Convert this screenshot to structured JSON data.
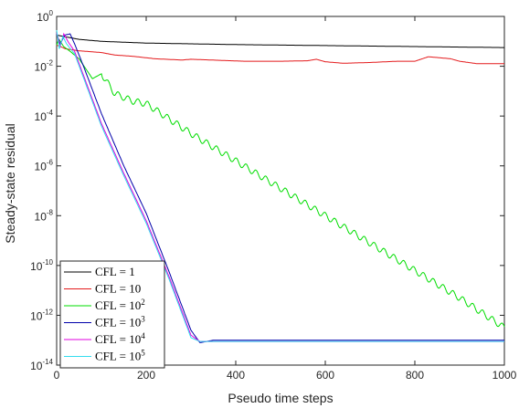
{
  "chart_data": {
    "type": "line",
    "xlabel": "Pseudo time steps",
    "ylabel": "Steady-state residual",
    "xlim": [
      0,
      1000
    ],
    "ylim_exponent": [
      -14,
      0
    ],
    "yscale": "log",
    "grid": false,
    "legend_position": "bottom-left",
    "x_ticks": [
      "0",
      "200",
      "400",
      "600",
      "800",
      "1000"
    ],
    "y_ticks": [
      {
        "base": "10",
        "exp": "0",
        "value": 0
      },
      {
        "base": "10",
        "exp": "-2",
        "value": -2
      },
      {
        "base": "10",
        "exp": "-4",
        "value": -4
      },
      {
        "base": "10",
        "exp": "-6",
        "value": -6
      },
      {
        "base": "10",
        "exp": "-8",
        "value": -8
      },
      {
        "base": "10",
        "exp": "-10",
        "value": -10
      },
      {
        "base": "10",
        "exp": "-12",
        "value": -12
      },
      {
        "base": "10",
        "exp": "-14",
        "value": -14
      }
    ],
    "series": [
      {
        "label": "CFL = 1",
        "label_base": "CFL = 1",
        "label_sup": "",
        "color": "#000000",
        "x": [
          0,
          20,
          50,
          100,
          200,
          300,
          400,
          500,
          600,
          700,
          800,
          900,
          1000
        ],
        "log10_y": [
          -0.75,
          -0.82,
          -0.92,
          -1.0,
          -1.07,
          -1.1,
          -1.13,
          -1.15,
          -1.17,
          -1.19,
          -1.21,
          -1.23,
          -1.25
        ]
      },
      {
        "label": "CFL = 10",
        "label_base": "CFL = 10",
        "label_sup": "",
        "color": "#e41a1c",
        "x": [
          0,
          20,
          50,
          100,
          130,
          170,
          220,
          280,
          300,
          420,
          500,
          560,
          580,
          600,
          640,
          700,
          760,
          800,
          830,
          850,
          880,
          900,
          940,
          1000
        ],
        "log10_y": [
          -1.15,
          -1.3,
          -1.38,
          -1.45,
          -1.55,
          -1.6,
          -1.7,
          -1.75,
          -1.72,
          -1.8,
          -1.8,
          -1.78,
          -1.72,
          -1.82,
          -1.88,
          -1.85,
          -1.8,
          -1.8,
          -1.62,
          -1.65,
          -1.7,
          -1.8,
          -1.9,
          -1.9
        ]
      },
      {
        "label": "CFL = 10^2",
        "label_base": "CFL = 10",
        "label_sup": "2",
        "color": "#00dd00",
        "x": [
          0,
          5,
          15,
          30,
          50,
          80,
          100,
          130,
          170,
          200,
          300,
          400,
          500,
          600,
          700,
          800,
          900,
          1000
        ],
        "log10_y": [
          -1.15,
          -0.9,
          -1.2,
          -1.4,
          -1.7,
          -2.5,
          -2.3,
          -3.1,
          -3.4,
          -3.5,
          -4.7,
          -5.8,
          -6.9,
          -8.0,
          -9.1,
          -10.2,
          -11.3,
          -12.5
        ]
      },
      {
        "label": "CFL = 10^3",
        "label_base": "CFL = 10",
        "label_sup": "3",
        "color": "#0000aa",
        "x": [
          0,
          8,
          18,
          30,
          40,
          60,
          100,
          150,
          200,
          250,
          300,
          320,
          350,
          400,
          500,
          600,
          700,
          800,
          900,
          1000
        ],
        "log10_y": [
          -0.7,
          -1.1,
          -0.75,
          -0.7,
          -1.1,
          -2.0,
          -3.9,
          -6.0,
          -7.9,
          -10.2,
          -12.6,
          -13.1,
          -13.0,
          -13.0,
          -13.0,
          -13.0,
          -13.0,
          -13.0,
          -13.0,
          -13.0
        ]
      },
      {
        "label": "CFL = 10^4",
        "label_base": "CFL = 10",
        "label_sup": "4",
        "color": "#e000e0",
        "x": [
          0,
          8,
          16,
          25,
          40,
          100,
          150,
          200,
          250,
          300,
          320,
          350,
          500,
          1000
        ],
        "log10_y": [
          -0.65,
          -1.2,
          -0.7,
          -1.0,
          -1.4,
          -4.3,
          -6.3,
          -8.2,
          -10.4,
          -12.8,
          -13.05,
          -13.05,
          -13.05,
          -13.05
        ]
      },
      {
        "label": "CFL = 10^5",
        "label_base": "CFL = 10",
        "label_sup": "5",
        "color": "#33ddee",
        "x": [
          0,
          6,
          14,
          22,
          40,
          100,
          150,
          200,
          250,
          300,
          320,
          350,
          500,
          1000
        ],
        "log10_y": [
          -0.55,
          -1.3,
          -0.8,
          -1.1,
          -1.5,
          -4.4,
          -6.4,
          -8.3,
          -10.5,
          -12.9,
          -13.05,
          -13.05,
          -13.05,
          -13.05
        ]
      }
    ]
  }
}
